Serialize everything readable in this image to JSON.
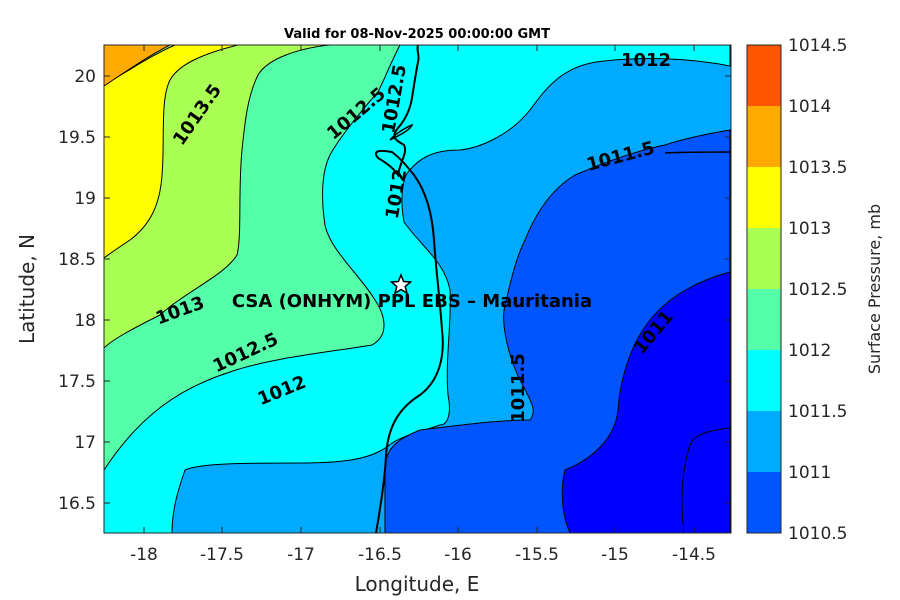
{
  "title": "Valid for 08-Nov-2025 00:00:00 GMT",
  "x_axis": {
    "label": "Longitude, E",
    "ticks": [
      "-18",
      "-17.5",
      "-17",
      "-16.5",
      "-16",
      "-15.5",
      "-15",
      "-14.5"
    ]
  },
  "y_axis": {
    "label": "Latitude, N",
    "ticks": [
      "20",
      "19.5",
      "19",
      "18.5",
      "18",
      "17.5",
      "17",
      "16.5"
    ]
  },
  "colorbar": {
    "label": "Surface Pressure, mb",
    "ticks": [
      "1014.5",
      "1014",
      "1013.5",
      "1013",
      "1012.5",
      "1012",
      "1011.5",
      "1011",
      "1010.5"
    ],
    "colors": [
      "#ff5500",
      "#ffaa00",
      "#ffff00",
      "#aaff55",
      "#55ffaa",
      "#00ffff",
      "#00aaff",
      "#0055ff",
      "#0000ff"
    ]
  },
  "station": {
    "label": "CSA (ONHYM) PPL EBS  – Mauritania",
    "marker": "star-icon"
  },
  "contour_labels": [
    {
      "text": "1013.5"
    },
    {
      "text": "1012.5"
    },
    {
      "text": "1012.5"
    },
    {
      "text": "1012"
    },
    {
      "text": "1012"
    },
    {
      "text": "1011.5"
    },
    {
      "text": "1013"
    },
    {
      "text": "1012.5"
    },
    {
      "text": "1012"
    },
    {
      "text": "1011"
    },
    {
      "text": "1011.5"
    }
  ]
}
